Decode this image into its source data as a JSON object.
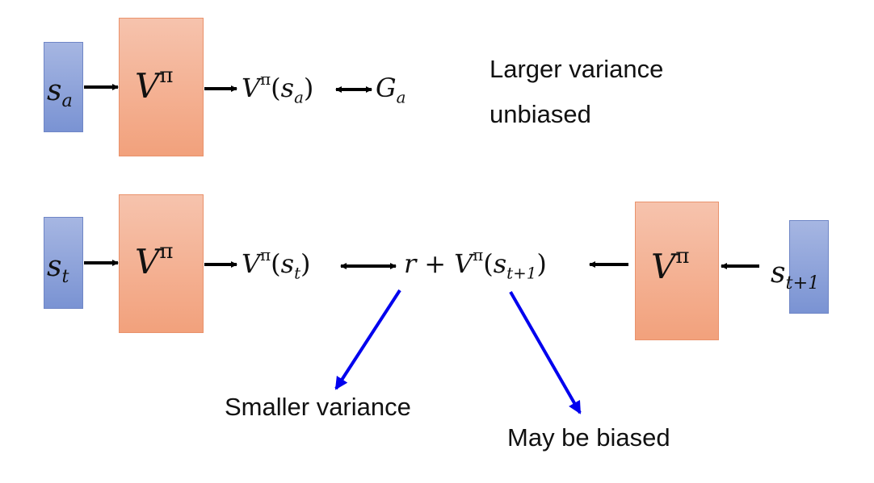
{
  "row1": {
    "state": {
      "base": "s",
      "sub": "a"
    },
    "box": {
      "base": "V",
      "sup": "π"
    },
    "value": {
      "base": "V",
      "sup": "π",
      "arg_base": "s",
      "arg_sub": "a"
    },
    "target": {
      "base": "G",
      "sub": "a"
    }
  },
  "row2": {
    "state": {
      "base": "s",
      "sub": "t"
    },
    "box": {
      "base": "V",
      "sup": "π"
    },
    "value": {
      "base": "V",
      "sup": "π",
      "arg_base": "s",
      "arg_sub": "t"
    },
    "target": {
      "r": "r",
      "plus": "+",
      "base": "V",
      "sup": "π",
      "arg_base": "s",
      "arg_sub": "t+1"
    },
    "box_right": {
      "base": "V",
      "sup": "π"
    },
    "state_right": {
      "base": "s",
      "sub": "t+1"
    }
  },
  "notes": {
    "larger_variance": "Larger variance",
    "unbiased": "unbiased",
    "smaller_variance": "Smaller variance",
    "may_be_biased": "May be biased"
  },
  "colors": {
    "state_box": "#8ea4da",
    "value_box": "#f4b295",
    "pointer_arrow": "#0000ee",
    "arrow": "#000000"
  }
}
